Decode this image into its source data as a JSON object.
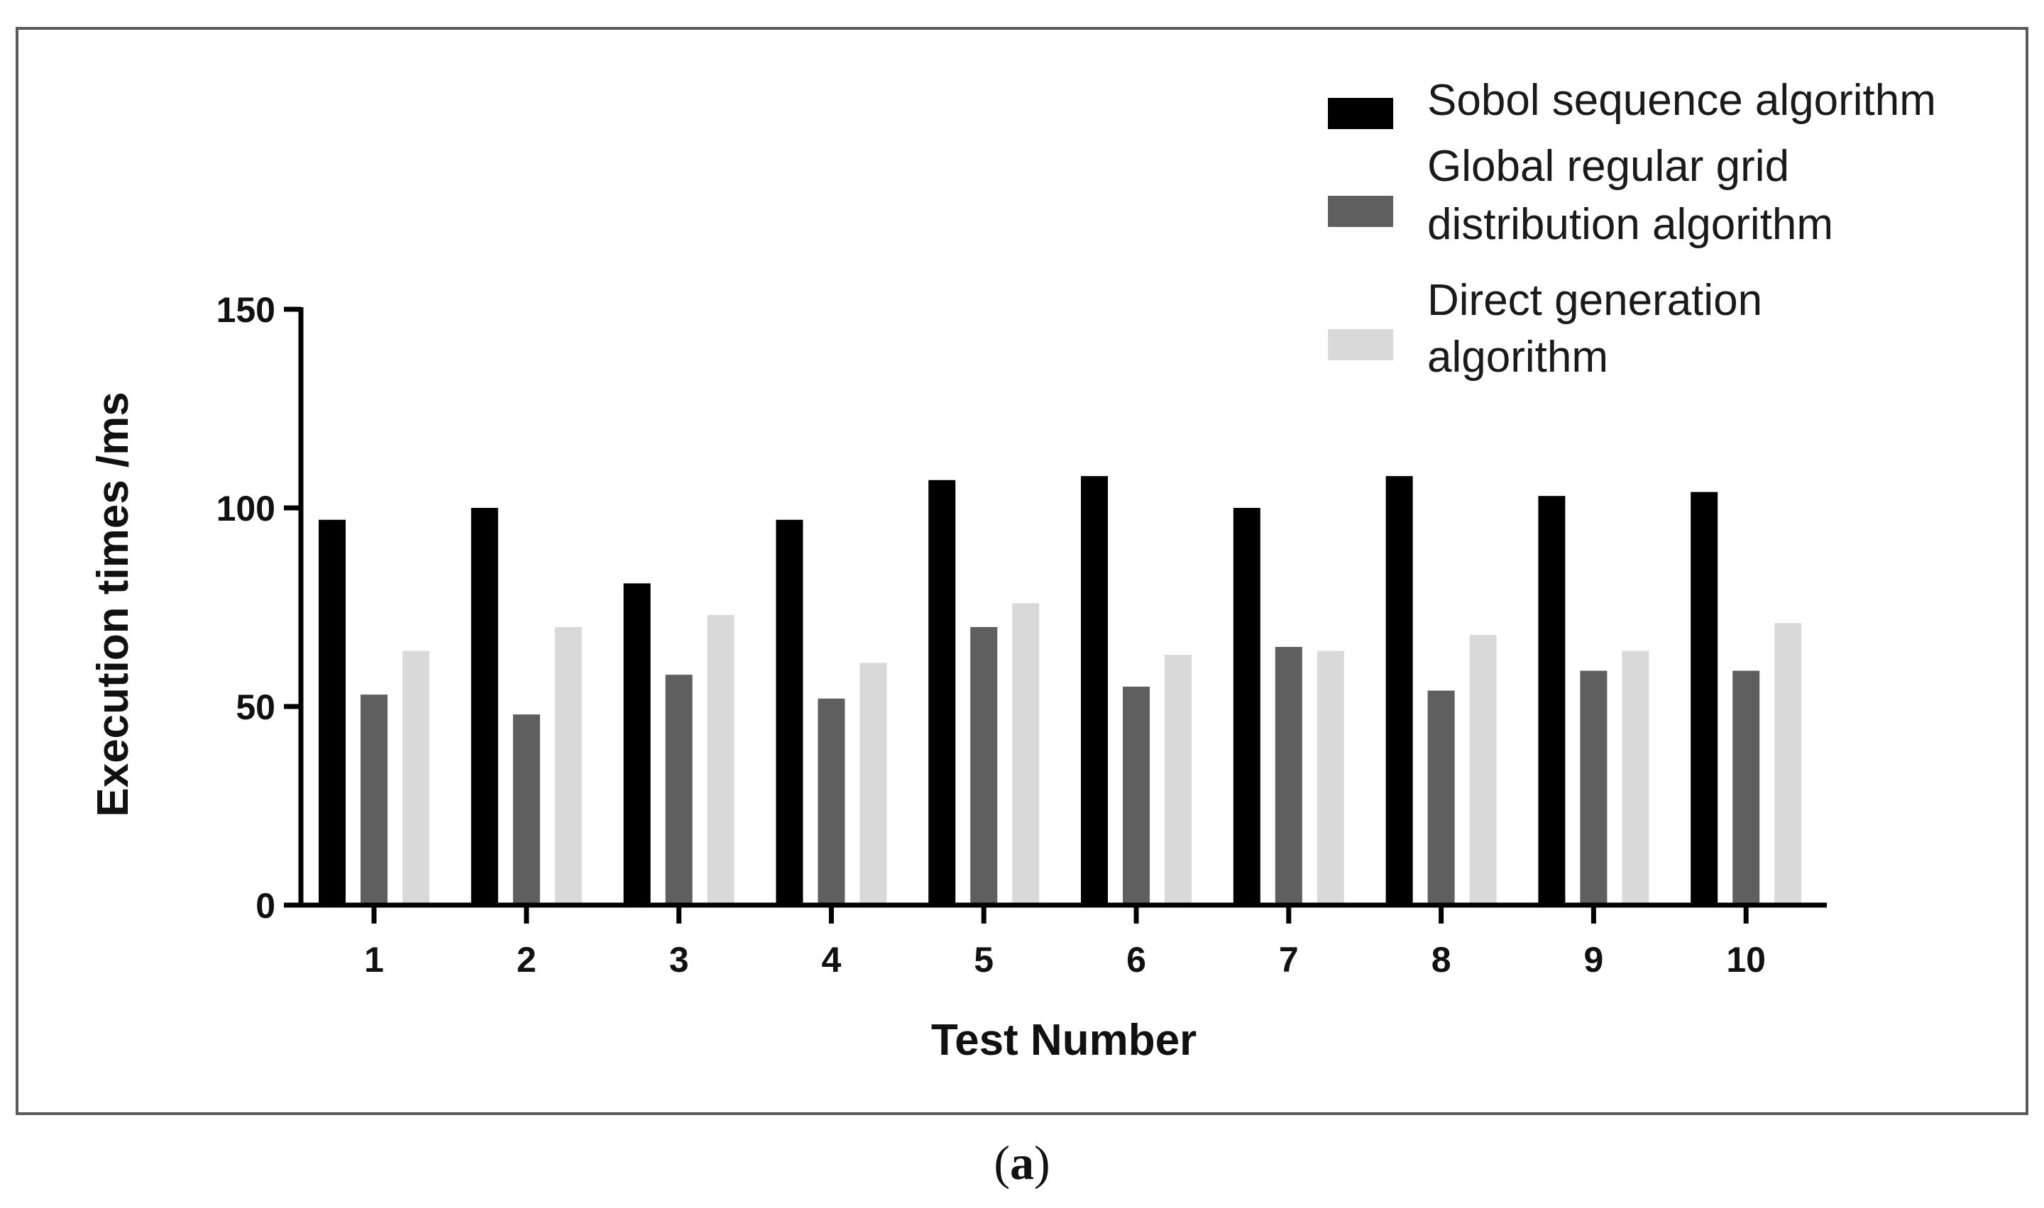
{
  "chart_data": {
    "type": "bar",
    "xlabel": "Test Number",
    "ylabel": "Execution  times /ms",
    "ylim": [
      0,
      150
    ],
    "yticks": [
      0,
      50,
      100,
      150
    ],
    "categories": [
      "1",
      "2",
      "3",
      "4",
      "5",
      "6",
      "7",
      "8",
      "9",
      "10"
    ],
    "series": [
      {
        "name": "Sobol sequence algorithm",
        "color": "#000000",
        "values": [
          97,
          100,
          81,
          97,
          107,
          108,
          100,
          108,
          103,
          104
        ]
      },
      {
        "name": "Global regular grid distribution algorithm",
        "color": "#5f5f5f",
        "values": [
          53,
          48,
          58,
          52,
          70,
          55,
          65,
          54,
          59,
          59
        ]
      },
      {
        "name": "Direct generation algorithm",
        "color": "#d9d9d9",
        "values": [
          64,
          70,
          73,
          61,
          76,
          63,
          64,
          68,
          64,
          71
        ]
      }
    ],
    "legend_position": "top-right",
    "grid": false
  },
  "caption": {
    "open": "(",
    "letter": "a",
    "close": ")"
  }
}
